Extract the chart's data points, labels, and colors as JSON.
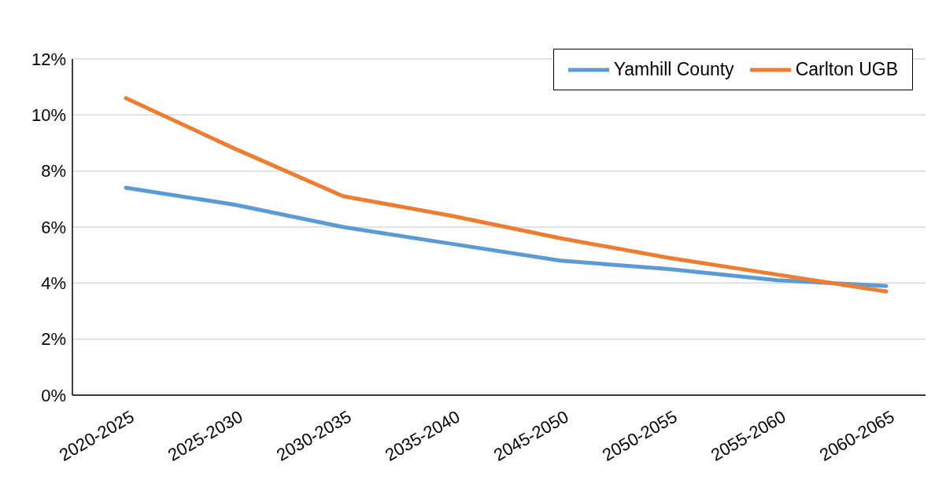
{
  "chart_data": {
    "type": "line",
    "categories": [
      "2020-2025",
      "2025-2030",
      "2030-2035",
      "2035-2040",
      "2045-2050",
      "2050-2055",
      "2055-2060",
      "2060-2065"
    ],
    "series": [
      {
        "name": "Yamhill County",
        "color": "#5b9bd5",
        "values": [
          7.4,
          6.8,
          6.0,
          5.4,
          4.8,
          4.5,
          4.1,
          3.9
        ]
      },
      {
        "name": "Carlton UGB",
        "color": "#ed7d31",
        "values": [
          10.6,
          8.8,
          7.1,
          6.4,
          5.6,
          4.9,
          4.3,
          3.7
        ]
      }
    ],
    "ylim": [
      0,
      12
    ],
    "yticks": [
      {
        "value": 0,
        "label": "0%"
      },
      {
        "value": 2,
        "label": "2%"
      },
      {
        "value": 4,
        "label": "4%"
      },
      {
        "value": 6,
        "label": "6%"
      },
      {
        "value": 8,
        "label": "8%"
      },
      {
        "value": 10,
        "label": "10%"
      },
      {
        "value": 12,
        "label": "12%"
      }
    ],
    "grid": "y",
    "legend": "top right",
    "marker": "none",
    "line_style": "solid"
  }
}
